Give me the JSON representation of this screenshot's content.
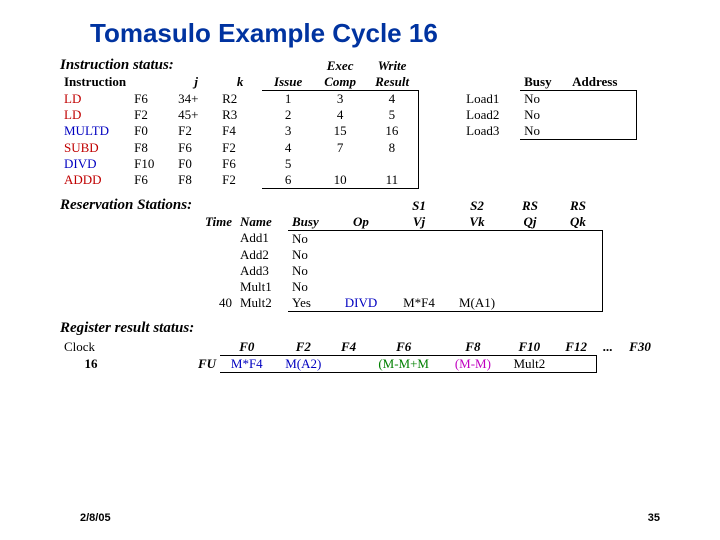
{
  "title": "Tomasulo Example Cycle 16",
  "instr_status": {
    "section": "Instruction status:",
    "cols": {
      "exec": "Exec",
      "write": "Write",
      "j": "j",
      "k": "k",
      "issue": "Issue",
      "comp": "Comp",
      "result": "Result",
      "busy": "Busy",
      "address": "Address",
      "instruction": "Instruction"
    },
    "rows": [
      {
        "op": "LD",
        "dst": "F6",
        "j": "34+",
        "k": "R2",
        "issue": "1",
        "comp": "3",
        "result": "4",
        "lb": "Load1",
        "busy": "No"
      },
      {
        "op": "LD",
        "dst": "F2",
        "j": "45+",
        "k": "R3",
        "issue": "2",
        "comp": "4",
        "result": "5",
        "lb": "Load2",
        "busy": "No"
      },
      {
        "op": "MULTD",
        "dst": "F0",
        "j": "F2",
        "k": "F4",
        "issue": "3",
        "comp": "15",
        "result": "16",
        "lb": "Load3",
        "busy": "No"
      },
      {
        "op": "SUBD",
        "dst": "F8",
        "j": "F6",
        "k": "F2",
        "issue": "4",
        "comp": "7",
        "result": "8"
      },
      {
        "op": "DIVD",
        "dst": "F10",
        "j": "F0",
        "k": "F6",
        "issue": "5",
        "comp": "",
        "result": ""
      },
      {
        "op": "ADDD",
        "dst": "F6",
        "j": "F8",
        "k": "F2",
        "issue": "6",
        "comp": "10",
        "result": "11"
      }
    ],
    "colors": {
      "LD": "red",
      "MULTD": "blue",
      "SUBD": "red",
      "DIVD": "blue",
      "ADDD": "red"
    }
  },
  "res_stations": {
    "section": "Reservation Stations:",
    "cols": {
      "time": "Time",
      "name": "Name",
      "busy": "Busy",
      "op": "Op",
      "s1": "S1",
      "s2": "S2",
      "rs1": "RS",
      "rs2": "RS",
      "vj": "Vj",
      "vk": "Vk",
      "qj": "Qj",
      "qk": "Qk"
    },
    "rows": [
      {
        "time": "",
        "name": "Add1",
        "busy": "No",
        "op": "",
        "vj": "",
        "vk": "",
        "qj": "",
        "qk": ""
      },
      {
        "time": "",
        "name": "Add2",
        "busy": "No",
        "op": "",
        "vj": "",
        "vk": "",
        "qj": "",
        "qk": ""
      },
      {
        "time": "",
        "name": "Add3",
        "busy": "No",
        "op": "",
        "vj": "",
        "vk": "",
        "qj": "",
        "qk": ""
      },
      {
        "time": "",
        "name": "Mult1",
        "busy": "No",
        "op": "",
        "vj": "",
        "vk": "",
        "qj": "",
        "qk": ""
      },
      {
        "time": "40",
        "name": "Mult2",
        "busy": "Yes",
        "op": "DIVD",
        "vj": "M*F4",
        "vk": "M(A1)",
        "qj": "",
        "qk": ""
      }
    ]
  },
  "reg_status": {
    "section": "Register result status:",
    "clock_label": "Clock",
    "clock_val": "16",
    "fu_label": "FU",
    "cols": [
      "F0",
      "F2",
      "F4",
      "F6",
      "F8",
      "F10",
      "F12",
      "...",
      "F30"
    ],
    "vals": [
      "M*F4",
      "M(A2)",
      "",
      "(M-M+M",
      "(M-M)",
      "Mult2",
      "",
      "",
      ""
    ],
    "val_colors": [
      "blue",
      "blue",
      "",
      "green",
      "magenta",
      "black",
      "",
      "",
      ""
    ]
  },
  "footer": {
    "date": "2/8/05",
    "page": "35"
  }
}
